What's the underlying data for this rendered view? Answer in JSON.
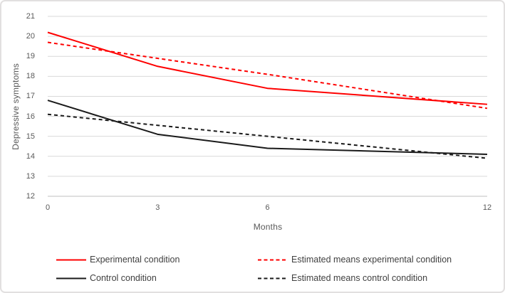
{
  "chart_data": {
    "type": "line",
    "title": "",
    "xlabel": "Months",
    "ylabel": "Depressive symptoms",
    "x": [
      0,
      3,
      6,
      12
    ],
    "xticks": [
      0,
      3,
      6,
      12
    ],
    "yticks": [
      12,
      13,
      14,
      15,
      16,
      17,
      18,
      19,
      20,
      21
    ],
    "xlim": [
      0,
      12
    ],
    "ylim": [
      12,
      21
    ],
    "grid": true,
    "legend_position": "bottom",
    "colors": {
      "experimental": "#fe0000",
      "control": "#1a1a1a",
      "gridline": "#d9d9d9",
      "axis_line": "#bfbfbf",
      "tick_text": "#595959",
      "legend_text": "#404040"
    },
    "series": [
      {
        "name": "Experimental condition",
        "color": "#fe0000",
        "style": "solid",
        "values": [
          20.2,
          18.5,
          17.4,
          16.6
        ]
      },
      {
        "name": "Estimated means experimental condition",
        "color": "#fe0000",
        "style": "dashed",
        "values": [
          19.7,
          18.9,
          18.1,
          16.4
        ]
      },
      {
        "name": "Control condition",
        "color": "#1a1a1a",
        "style": "solid",
        "values": [
          16.8,
          15.1,
          14.4,
          14.1
        ]
      },
      {
        "name": "Estimated means control condition",
        "color": "#1a1a1a",
        "style": "dashed",
        "values": [
          16.1,
          15.55,
          15.0,
          13.9
        ]
      }
    ]
  }
}
